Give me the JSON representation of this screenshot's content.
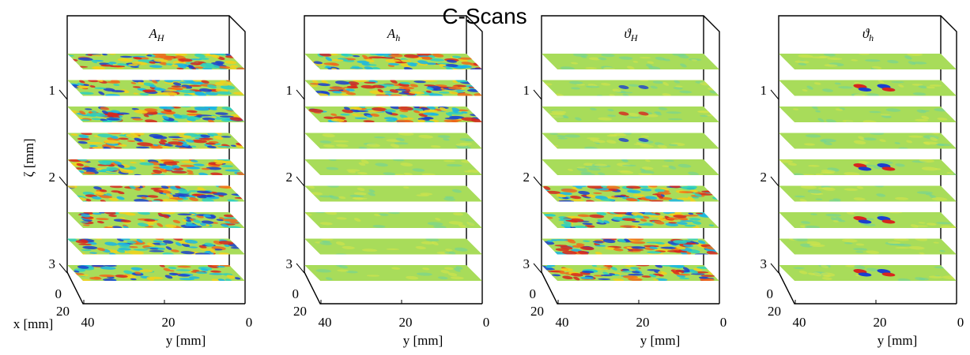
{
  "title": "C-Scans",
  "panels": [
    {
      "symbol": "A",
      "subscript": "H"
    },
    {
      "symbol": "A",
      "subscript": "h"
    },
    {
      "symbol": "ϑ",
      "subscript": "H"
    },
    {
      "symbol": "ϑ",
      "subscript": "h"
    }
  ],
  "z_axis": {
    "label": "ζ [mm]",
    "ticks": [
      1,
      2,
      3
    ]
  },
  "x_axis": {
    "label": "x [mm]",
    "ticks": [
      0,
      20
    ]
  },
  "y_axis": {
    "label": "y [mm]",
    "ticks": [
      40,
      20,
      0
    ]
  }
}
